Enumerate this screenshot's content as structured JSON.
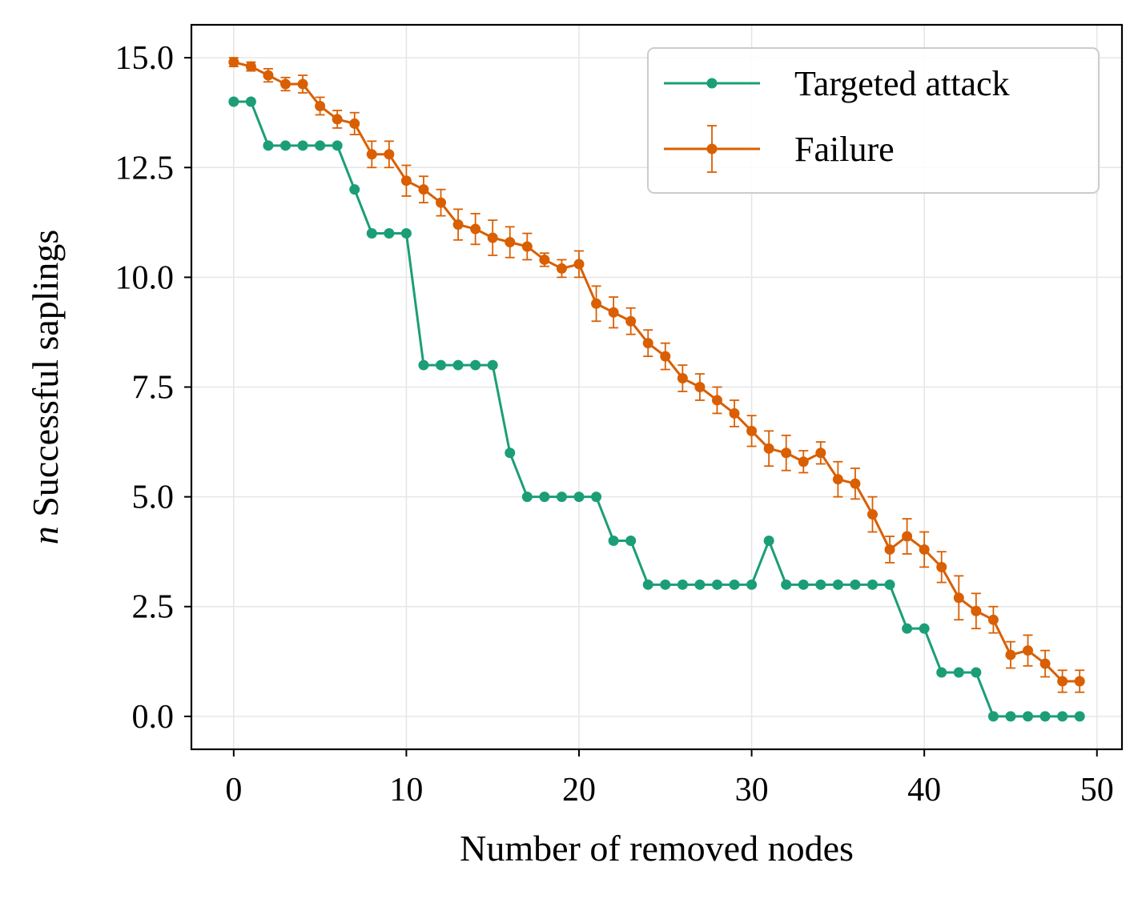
{
  "chart_data": {
    "type": "line",
    "xlabel": "Number of removed nodes",
    "ylabel_italic": "n",
    "ylabel_rest": " Successful saplings",
    "xlim": [
      -2.45,
      51.45
    ],
    "ylim": [
      -0.75,
      15.75
    ],
    "xticks": [
      0,
      10,
      20,
      30,
      40,
      50
    ],
    "yticks": [
      0.0,
      2.5,
      5.0,
      7.5,
      10.0,
      12.5,
      15.0
    ],
    "grid": true,
    "legend": "top-right",
    "x": [
      0,
      1,
      2,
      3,
      4,
      5,
      6,
      7,
      8,
      9,
      10,
      11,
      12,
      13,
      14,
      15,
      16,
      17,
      18,
      19,
      20,
      21,
      22,
      23,
      24,
      25,
      26,
      27,
      28,
      29,
      30,
      31,
      32,
      33,
      34,
      35,
      36,
      37,
      38,
      39,
      40,
      41,
      42,
      43,
      44,
      45,
      46,
      47,
      48,
      49
    ],
    "series": [
      {
        "name": "Targeted attack",
        "color": "#1b9e77",
        "values": [
          14,
          14,
          13,
          13,
          13,
          13,
          13,
          12,
          11,
          11,
          11,
          8,
          8,
          8,
          8,
          8,
          6,
          5,
          5,
          5,
          5,
          5,
          4,
          4,
          3,
          3,
          3,
          3,
          3,
          3,
          3,
          4,
          3,
          3,
          3,
          3,
          3,
          3,
          3,
          2,
          2,
          1,
          1,
          1,
          0,
          0,
          0,
          0,
          0,
          0
        ]
      },
      {
        "name": "Failure",
        "color": "#d95f02",
        "values": [
          14.9,
          14.8,
          14.6,
          14.4,
          14.4,
          13.9,
          13.6,
          13.5,
          12.8,
          12.8,
          12.2,
          12.0,
          11.7,
          11.2,
          11.1,
          10.9,
          10.8,
          10.7,
          10.4,
          10.2,
          10.3,
          9.4,
          9.2,
          9.0,
          8.5,
          8.2,
          7.7,
          7.5,
          7.2,
          6.9,
          6.5,
          6.1,
          6.0,
          5.8,
          6.0,
          5.4,
          5.3,
          4.6,
          3.8,
          4.1,
          3.8,
          3.4,
          2.7,
          2.4,
          2.2,
          1.4,
          1.5,
          1.2,
          0.8,
          0.8
        ],
        "error": [
          0.1,
          0.1,
          0.15,
          0.15,
          0.2,
          0.2,
          0.2,
          0.25,
          0.3,
          0.3,
          0.35,
          0.3,
          0.3,
          0.35,
          0.35,
          0.4,
          0.35,
          0.3,
          0.15,
          0.2,
          0.3,
          0.4,
          0.35,
          0.3,
          0.3,
          0.3,
          0.3,
          0.3,
          0.3,
          0.3,
          0.35,
          0.4,
          0.4,
          0.25,
          0.25,
          0.4,
          0.35,
          0.4,
          0.3,
          0.4,
          0.4,
          0.35,
          0.5,
          0.4,
          0.3,
          0.3,
          0.35,
          0.3,
          0.25,
          0.25
        ]
      }
    ]
  }
}
